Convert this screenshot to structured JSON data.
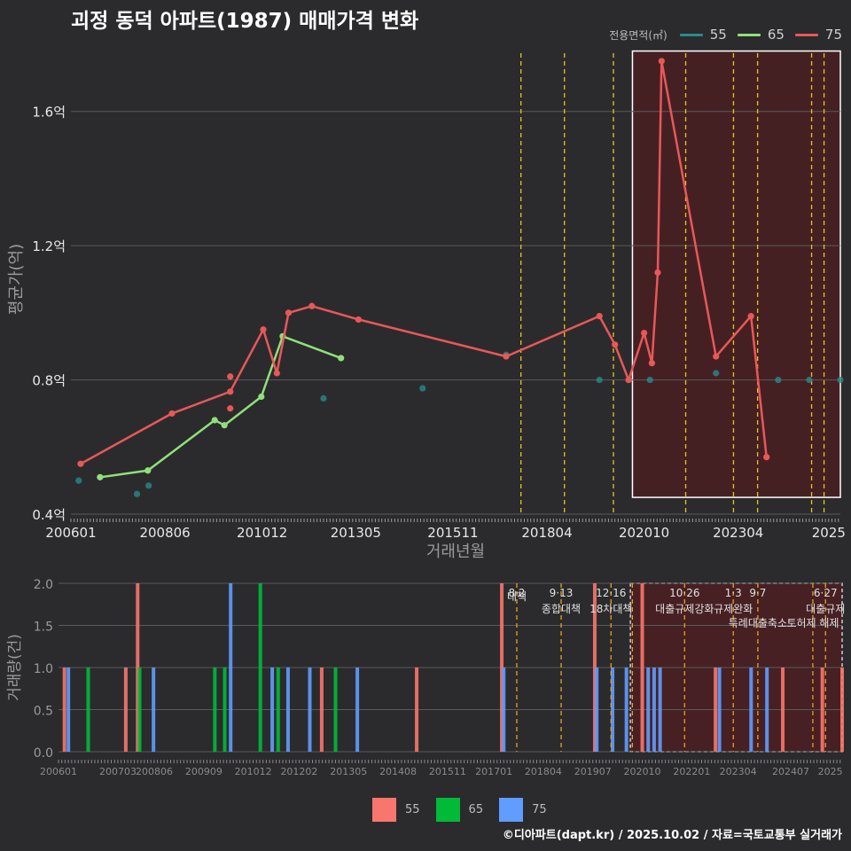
{
  "title": "괴정 동덕 아파트(1987) 매매가격 변화",
  "caption": "©디아파트(dapt.kr) / 2025.10.02 / 자료=국토교통부 실거래가",
  "colors": {
    "background": "#2b2b2d",
    "grid": "#5a5a5a",
    "s55_line": "#2a8a8a",
    "s65_line": "#90e07a",
    "s75_line": "#e85858",
    "bar55": "#f8766d",
    "bar65": "#00ba38",
    "bar75": "#619cff",
    "policy_line": "#e6c619",
    "highlight": "#4a1f22"
  },
  "top_legend": {
    "title": "전용면적(㎡)",
    "items": [
      {
        "label": "55",
        "color": "#2a8a8a"
      },
      {
        "label": "65",
        "color": "#90e07a"
      },
      {
        "label": "75",
        "color": "#e85858"
      }
    ]
  },
  "bottom_legend": {
    "items": [
      {
        "label": "55",
        "color": "#f8766d"
      },
      {
        "label": "65",
        "color": "#00ba38"
      },
      {
        "label": "75",
        "color": "#619cff"
      }
    ]
  },
  "chart_data": [
    {
      "type": "line",
      "title": "괴정 동덕 아파트(1987) 매매가격 변화",
      "xlabel": "거래년월",
      "ylabel": "평균가(억)",
      "xlim": [
        2006.0,
        2025.8
      ],
      "ylim": [
        0.4,
        1.8
      ],
      "x_ticks": [
        {
          "value": 2006.0,
          "label": "200601"
        },
        {
          "value": 2008.42,
          "label": "200806"
        },
        {
          "value": 2010.92,
          "label": "201012"
        },
        {
          "value": 2013.33,
          "label": "201305"
        },
        {
          "value": 2015.83,
          "label": "201511"
        },
        {
          "value": 2018.25,
          "label": "201804"
        },
        {
          "value": 2020.75,
          "label": "202010"
        },
        {
          "value": 2023.17,
          "label": "202304"
        },
        {
          "value": 2025.5,
          "label": "2025"
        }
      ],
      "y_ticks": [
        {
          "value": 0.4,
          "label": "0.4억"
        },
        {
          "value": 0.8,
          "label": "0.8억"
        },
        {
          "value": 1.2,
          "label": "1.2억"
        },
        {
          "value": 1.6,
          "label": "1.6억"
        }
      ],
      "series": [
        {
          "name": "55",
          "mode": "points",
          "x": [
            2006.2,
            2007.7,
            2008.0,
            2012.5,
            2015.05,
            2017.2,
            2019.6,
            2020.9,
            2022.6,
            2024.2,
            2025.0,
            2025.8
          ],
          "y": [
            0.5,
            0.46,
            0.485,
            0.745,
            0.775,
            0.875,
            0.8,
            0.8,
            0.82,
            0.8,
            0.8,
            0.8
          ]
        },
        {
          "name": "65",
          "mode": "line",
          "x": [
            2006.75,
            2007.98,
            2009.7,
            2009.95,
            2010.9,
            2011.45,
            2012.95
          ],
          "y": [
            0.51,
            0.53,
            0.68,
            0.665,
            0.75,
            0.93,
            0.865
          ]
        },
        {
          "name": "75",
          "mode": "line",
          "x": [
            2006.25,
            2008.6,
            2010.1,
            2010.95,
            2011.3,
            2011.6,
            2012.2,
            2013.4,
            2017.2,
            2019.6,
            2020.0,
            2020.35,
            2020.75,
            2020.95,
            2021.1,
            2021.2,
            2022.6,
            2023.5,
            2023.9
          ],
          "y": [
            0.55,
            0.7,
            0.765,
            0.95,
            0.82,
            1.0,
            1.02,
            0.98,
            0.87,
            0.99,
            0.905,
            0.8,
            0.94,
            0.85,
            1.12,
            1.75,
            0.87,
            0.99,
            0.57
          ]
        },
        {
          "name": "75-points-extra",
          "mode": "points-only",
          "x": [
            2010.1,
            2010.1
          ],
          "y": [
            0.81,
            0.715
          ]
        }
      ],
      "policy_lines": [
        2017.58,
        2018.7,
        2019.96,
        2021.82,
        2023.05,
        2023.67,
        2025.06,
        2025.38
      ],
      "highlight_range": {
        "x": [
          2020.45,
          2025.8
        ],
        "y": [
          0.45,
          1.78
        ]
      }
    },
    {
      "type": "bar",
      "ylabel": "거래량(건)",
      "ylim": [
        0,
        2.0
      ],
      "y_ticks": [
        {
          "value": 0.0,
          "label": "0.0"
        },
        {
          "value": 0.5,
          "label": "0.5"
        },
        {
          "value": 1.0,
          "label": "1.0"
        },
        {
          "value": 1.5,
          "label": "1.5"
        },
        {
          "value": 2.0,
          "label": "2.0"
        }
      ],
      "x_ticks": [
        {
          "value": 2006.0,
          "label": "200601"
        },
        {
          "value": 2007.5,
          "label": "200703"
        },
        {
          "value": 2008.42,
          "label": "200806"
        },
        {
          "value": 2009.67,
          "label": "200909"
        },
        {
          "value": 2010.92,
          "label": "201012"
        },
        {
          "value": 2012.08,
          "label": "201202"
        },
        {
          "value": 2013.33,
          "label": "201305"
        },
        {
          "value": 2014.58,
          "label": "201408"
        },
        {
          "value": 2015.83,
          "label": "201511"
        },
        {
          "value": 2017.0,
          "label": "201701"
        },
        {
          "value": 2018.25,
          "label": "201804"
        },
        {
          "value": 2019.5,
          "label": "201907"
        },
        {
          "value": 2020.75,
          "label": "202010"
        },
        {
          "value": 2022.0,
          "label": "202201"
        },
        {
          "value": 2023.17,
          "label": "202304"
        },
        {
          "value": 2024.5,
          "label": "202407"
        },
        {
          "value": 2025.5,
          "label": "2025"
        }
      ],
      "bars": [
        {
          "x": 2006.15,
          "series": "55",
          "value": 1
        },
        {
          "x": 2006.25,
          "series": "75",
          "value": 1
        },
        {
          "x": 2006.75,
          "series": "65",
          "value": 1
        },
        {
          "x": 2007.7,
          "series": "55",
          "value": 1
        },
        {
          "x": 2008.0,
          "series": "55",
          "value": 2
        },
        {
          "x": 2008.05,
          "series": "65",
          "value": 1
        },
        {
          "x": 2008.4,
          "series": "75",
          "value": 1
        },
        {
          "x": 2009.95,
          "series": "65",
          "value": 1
        },
        {
          "x": 2010.2,
          "series": "65",
          "value": 1
        },
        {
          "x": 2010.35,
          "series": "75",
          "value": 2
        },
        {
          "x": 2011.1,
          "series": "65",
          "value": 2
        },
        {
          "x": 2011.4,
          "series": "75",
          "value": 1
        },
        {
          "x": 2011.55,
          "series": "65",
          "value": 1
        },
        {
          "x": 2011.8,
          "series": "75",
          "value": 1
        },
        {
          "x": 2012.35,
          "series": "75",
          "value": 1
        },
        {
          "x": 2012.65,
          "series": "55",
          "value": 1
        },
        {
          "x": 2013.0,
          "series": "65",
          "value": 1
        },
        {
          "x": 2013.55,
          "series": "75",
          "value": 1
        },
        {
          "x": 2015.05,
          "series": "55",
          "value": 1
        },
        {
          "x": 2017.2,
          "series": "55",
          "value": 2
        },
        {
          "x": 2017.25,
          "series": "75",
          "value": 1
        },
        {
          "x": 2019.55,
          "series": "55",
          "value": 2
        },
        {
          "x": 2019.6,
          "series": "75",
          "value": 1
        },
        {
          "x": 2020.0,
          "series": "75",
          "value": 1
        },
        {
          "x": 2020.35,
          "series": "75",
          "value": 1
        },
        {
          "x": 2020.75,
          "series": "55",
          "value": 2
        },
        {
          "x": 2020.9,
          "series": "75",
          "value": 1
        },
        {
          "x": 2021.05,
          "series": "75",
          "value": 1
        },
        {
          "x": 2021.2,
          "series": "75",
          "value": 1
        },
        {
          "x": 2022.6,
          "series": "55",
          "value": 1
        },
        {
          "x": 2022.7,
          "series": "75",
          "value": 1
        },
        {
          "x": 2023.5,
          "series": "75",
          "value": 1
        },
        {
          "x": 2023.9,
          "series": "75",
          "value": 1
        },
        {
          "x": 2024.3,
          "series": "55",
          "value": 1
        },
        {
          "x": 2025.3,
          "series": "55",
          "value": 1
        },
        {
          "x": 2025.8,
          "series": "55",
          "value": 1
        }
      ],
      "policy_lines": [
        2017.58,
        2018.7,
        2019.96,
        2020.5,
        2021.82,
        2023.05,
        2023.67,
        2025.06,
        2025.38
      ],
      "policy_labels": [
        {
          "x": 2017.58,
          "date": "8·2",
          "text": "대책"
        },
        {
          "x": 2018.7,
          "date": "9·13",
          "text": "종합대책"
        },
        {
          "x": 2019.96,
          "date": "12·16",
          "text": "18차대책"
        },
        {
          "x": 2021.82,
          "date": "10·26",
          "text": "대출규제강화"
        },
        {
          "x": 2023.05,
          "date": "1·3",
          "text": "규제완화"
        },
        {
          "x": 2023.67,
          "date": "9·7",
          "text": "특례대출축소"
        },
        {
          "x": 2025.06,
          "date": "",
          "text": "토허제 해제"
        },
        {
          "x": 2025.38,
          "date": "6·27",
          "text": "대출규제"
        }
      ],
      "highlight_range": {
        "x": [
          2020.45,
          2025.8
        ]
      }
    }
  ]
}
